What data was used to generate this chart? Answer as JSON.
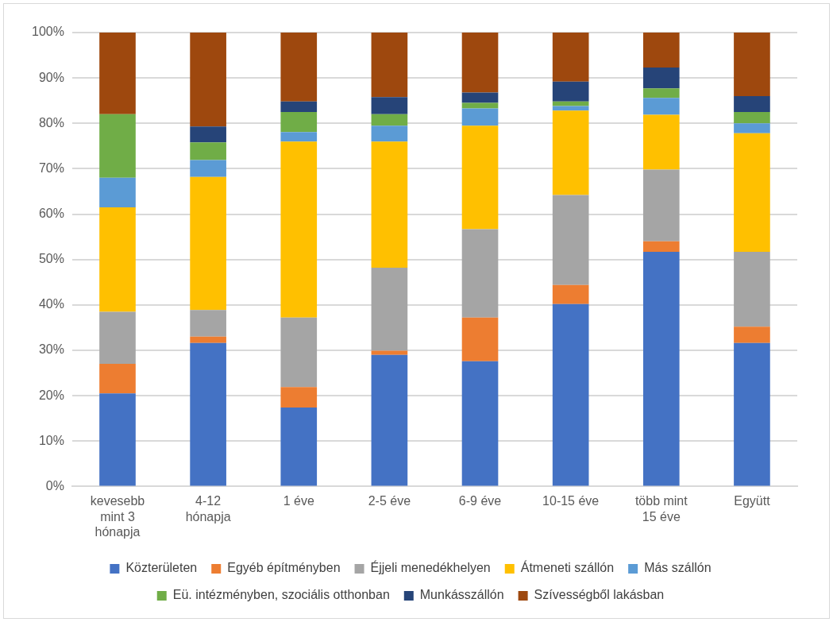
{
  "chart_data": {
    "type": "bar",
    "stacked": true,
    "categories": [
      "kevesebb mint 3 hónapja",
      "4-12 hónapja",
      "1 éve",
      "2-5 éve",
      "6-9 éve",
      "10-15 éve",
      "több mint 15 éve",
      "Együtt"
    ],
    "series": [
      {
        "name": "Közterületen",
        "color": "#4472c4",
        "values": [
          20.5,
          31.6,
          17.4,
          29.0,
          27.6,
          40.2,
          51.7,
          31.6
        ]
      },
      {
        "name": "Egyéb építményben",
        "color": "#ed7d31",
        "values": [
          6.5,
          1.4,
          4.5,
          0.9,
          9.6,
          4.2,
          2.3,
          3.6
        ]
      },
      {
        "name": "Éjjeli menedékhelyen",
        "color": "#a5a5a5",
        "values": [
          11.5,
          5.9,
          15.3,
          18.3,
          19.5,
          19.8,
          15.8,
          16.5
        ]
      },
      {
        "name": "Átmeneti szállón",
        "color": "#ffc000",
        "values": [
          23.0,
          29.3,
          38.8,
          27.8,
          22.8,
          18.6,
          12.1,
          26.1
        ]
      },
      {
        "name": "Más szállón",
        "color": "#5b9bd5",
        "values": [
          6.5,
          3.7,
          2.1,
          3.5,
          3.8,
          1.0,
          3.7,
          2.2
        ]
      },
      {
        "name": "Eü. intézményben, szociális otthonban",
        "color": "#70ad47",
        "values": [
          14.0,
          3.9,
          4.4,
          2.5,
          1.2,
          1.0,
          2.1,
          2.5
        ]
      },
      {
        "name": "Munkásszállón",
        "color": "#264478",
        "values": [
          0,
          3.5,
          2.3,
          3.8,
          2.3,
          4.4,
          4.6,
          3.5
        ]
      },
      {
        "name": "Szívességből lakásban",
        "color": "#9e480e",
        "values": [
          18.0,
          20.7,
          15.2,
          14.2,
          13.2,
          10.8,
          7.7,
          14.0
        ]
      }
    ],
    "ylim": [
      0,
      100
    ],
    "yticks": [
      {
        "value": 0,
        "label": "0%"
      },
      {
        "value": 10,
        "label": "10%"
      },
      {
        "value": 20,
        "label": "20%"
      },
      {
        "value": 30,
        "label": "30%"
      },
      {
        "value": 40,
        "label": "40%"
      },
      {
        "value": 50,
        "label": "50%"
      },
      {
        "value": 60,
        "label": "60%"
      },
      {
        "value": 70,
        "label": "70%"
      },
      {
        "value": 80,
        "label": "80%"
      },
      {
        "value": 90,
        "label": "90%"
      },
      {
        "value": 100,
        "label": "100%"
      }
    ],
    "grid": "y",
    "legend": "bottom"
  }
}
